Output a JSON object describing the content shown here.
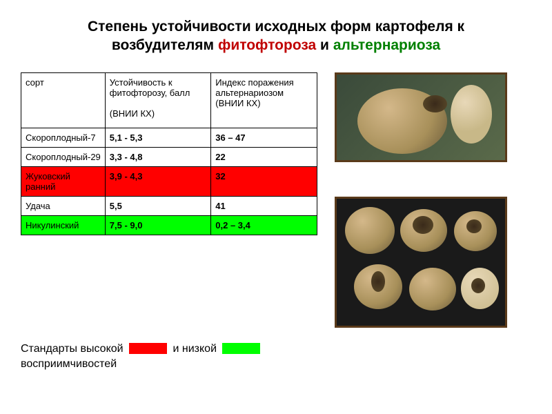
{
  "title": {
    "line1": "Степень устойчивости исходных форм картофеля к",
    "line2a": "возбудителям ",
    "disease1": "фитофтороза",
    "connector": " и ",
    "disease2": "альтернариоза",
    "disease1_color": "#c00000",
    "disease2_color": "#008000"
  },
  "table": {
    "headers": [
      "сорт",
      "Устойчивость к фитофторозу, балл\n(ВНИИ КХ)",
      "Индекс поражения альтернариозом (ВНИИ КХ)"
    ],
    "rows": [
      {
        "cells": [
          "Скороплодный-7",
          "5,1 - 5,3",
          "36 – 47"
        ],
        "bg": null
      },
      {
        "cells": [
          "Скороплодный-29",
          "3,3 - 4,8",
          "22"
        ],
        "bg": null
      },
      {
        "cells": [
          "Жуковский ранний",
          "3,9 - 4,3",
          "32"
        ],
        "bg": "#ff0000"
      },
      {
        "cells": [
          "Удача",
          "5,5",
          "41"
        ],
        "bg": null
      },
      {
        "cells": [
          "Никулинский",
          "7,5 - 9,0",
          "0,2 – 3,4"
        ],
        "bg": "#00ff00"
      }
    ]
  },
  "legend": {
    "text1": "Стандарты высокой",
    "swatch1_color": "#ff0000",
    "text2": "и низкой",
    "swatch2_color": "#00ff00",
    "text3": "восприимчивостей"
  },
  "photos": {
    "frame_color": "#5a3a1a",
    "photo1_bg": "#4a5a3a",
    "photo2_bg": "#1a1a1a"
  }
}
